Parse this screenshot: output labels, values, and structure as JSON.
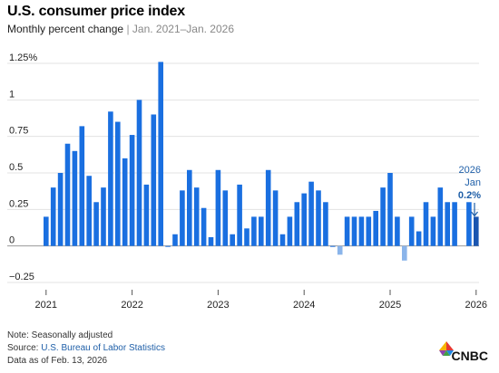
{
  "header": {
    "title": "U.S. consumer price index",
    "subtitle_main": "Monthly percent change",
    "subtitle_sep": "|",
    "subtitle_range": "Jan. 2021–Jan. 2026"
  },
  "annotation": {
    "year": "2026",
    "month": "Jan",
    "value": "0.2%"
  },
  "footer": {
    "note": "Note: Seasonally adjusted",
    "source_prefix": "Source: ",
    "source_link": "U.S. Bureau of Labor Statistics",
    "date": "Data as of Feb. 13, 2026"
  },
  "logo": {
    "text": "CNBC"
  },
  "colors": {
    "bar": "#1a6fe0",
    "highlight": "#1a55b0",
    "negative": "#8ab4ea",
    "grid": "#e3e3e3",
    "annotation": "#1f5fa8"
  },
  "chart_data": {
    "type": "bar",
    "title": "U.S. consumer price index",
    "subtitle": "Monthly percent change | Jan. 2021–Jan. 2026",
    "xlabel": "",
    "ylabel": "",
    "ylim": [
      -0.25,
      1.25
    ],
    "yticks": [
      -0.25,
      0,
      0.25,
      0.5,
      0.75,
      1,
      1.25
    ],
    "ytick_labels": [
      "−0.25",
      "0",
      "0.25",
      "0.5",
      "0.75",
      "1",
      "1.25%"
    ],
    "xtick_labels": [
      "2021",
      "2022",
      "2023",
      "2024",
      "2025",
      "2026"
    ],
    "grid": true,
    "categories": [
      "2021-01",
      "2021-02",
      "2021-03",
      "2021-04",
      "2021-05",
      "2021-06",
      "2021-07",
      "2021-08",
      "2021-09",
      "2021-10",
      "2021-11",
      "2021-12",
      "2022-01",
      "2022-02",
      "2022-03",
      "2022-04",
      "2022-05",
      "2022-06",
      "2022-07",
      "2022-08",
      "2022-09",
      "2022-10",
      "2022-11",
      "2022-12",
      "2023-01",
      "2023-02",
      "2023-03",
      "2023-04",
      "2023-05",
      "2023-06",
      "2023-07",
      "2023-08",
      "2023-09",
      "2023-10",
      "2023-11",
      "2023-12",
      "2024-01",
      "2024-02",
      "2024-03",
      "2024-04",
      "2024-05",
      "2024-06",
      "2024-07",
      "2024-08",
      "2024-09",
      "2024-10",
      "2024-11",
      "2024-12",
      "2025-01",
      "2025-02",
      "2025-03",
      "2025-04",
      "2025-05",
      "2025-06",
      "2025-07",
      "2025-08",
      "2025-09",
      "2025-10",
      "2025-11",
      "2025-12",
      "2026-01"
    ],
    "values": [
      0.2,
      0.4,
      0.5,
      0.7,
      0.65,
      0.82,
      0.48,
      0.3,
      0.4,
      0.92,
      0.85,
      0.6,
      0.76,
      1.0,
      0.42,
      0.9,
      1.26,
      0.0,
      0.08,
      0.38,
      0.52,
      0.4,
      0.26,
      0.06,
      0.52,
      0.38,
      0.08,
      0.42,
      0.12,
      0.2,
      0.2,
      0.52,
      0.38,
      0.08,
      0.2,
      0.3,
      0.36,
      0.44,
      0.38,
      0.3,
      0.0,
      -0.06,
      0.2,
      0.2,
      0.2,
      0.2,
      0.24,
      0.4,
      0.5,
      0.2,
      -0.1,
      0.2,
      0.1,
      0.3,
      0.2,
      0.4,
      0.3,
      0.3,
      null,
      0.3,
      0.2
    ]
  }
}
